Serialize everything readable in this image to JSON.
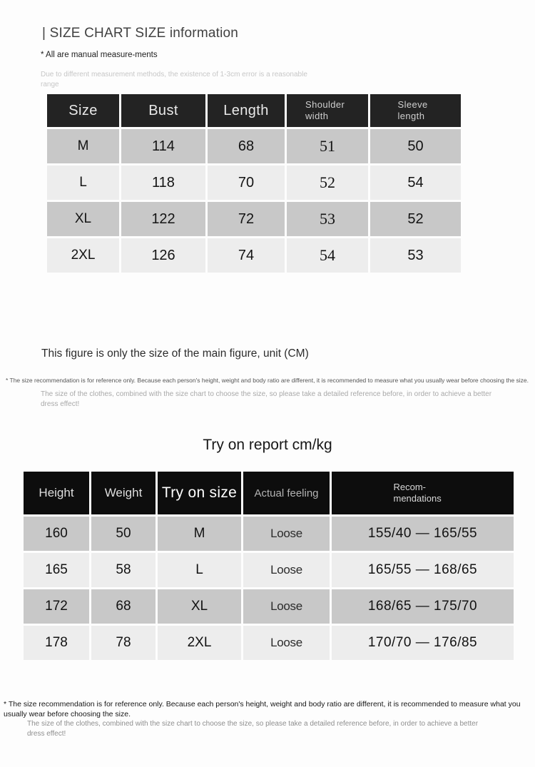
{
  "header": {
    "title": "| SIZE CHART SIZE information",
    "manual_note": "* All are manual measure-ments",
    "tolerance_note": "Due to different measurement methods, the existence of 1-3cm error is a reasonable range"
  },
  "size_chart": {
    "columns": [
      "Size",
      "Bust",
      "Length",
      "Shoulder width",
      "Sleeve length"
    ],
    "rows": [
      [
        "M",
        "114",
        "68",
        "51",
        "50"
      ],
      [
        "L",
        "118",
        "70",
        "52",
        "54"
      ],
      [
        "XL",
        "122",
        "72",
        "53",
        "52"
      ],
      [
        "2XL",
        "126",
        "74",
        "54",
        "53"
      ]
    ],
    "unit_note": "This figure is only the size of the main figure, unit (CM)"
  },
  "mid_notes": {
    "reference": "* The size recommendation is for reference only. Because each person's height, weight and body ratio are different, it is recommended to measure what you usually wear before choosing the size.",
    "detail": "The size of the clothes, combined with the size chart to choose the size, so please take a detailed reference before, in order to achieve a better dress effect!"
  },
  "try_on": {
    "title": "Try on report cm/kg",
    "columns": [
      "Height",
      "Weight",
      "Try on size",
      "Actual feeling",
      "Recom-mendations"
    ],
    "rows": [
      [
        "160",
        "50",
        "M",
        "Loose",
        "155/40 — 165/55"
      ],
      [
        "165",
        "58",
        "L",
        "Loose",
        "165/55 — 168/65"
      ],
      [
        "172",
        "68",
        "XL",
        "Loose",
        "168/65 — 175/70"
      ],
      [
        "178",
        "78",
        "2XL",
        "Loose",
        "170/70 — 176/85"
      ]
    ]
  },
  "bottom_notes": {
    "reference": "* The size recommendation is for reference only. Because each person's height, weight and body ratio are different, it is recommended to measure what you usually wear before choosing the size.",
    "detail": "The size of the clothes, combined with the size chart to choose the size, so please take a detailed reference before, in order to achieve a better dress effect!"
  },
  "colors": {
    "size_chart_header_bg": "#232323",
    "try_on_header_bg": "#0d0d0d",
    "row_gray": "#c8c8c8",
    "row_light": "#ededed"
  }
}
